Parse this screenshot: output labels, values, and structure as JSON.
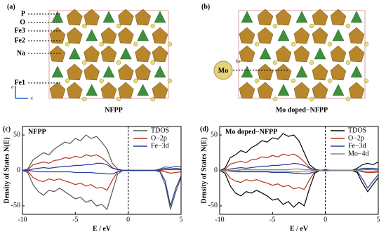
{
  "panels": [
    {
      "label": "(a)",
      "caption": "NFPP",
      "atoms": [
        "P",
        "O",
        "Fe3",
        "Fe2",
        "Na",
        "Fe1"
      ],
      "axes": [
        "a",
        "c"
      ]
    },
    {
      "label": "(b)",
      "caption": "Mo doped−NFPP",
      "dopant": "Mo",
      "charge": "6+"
    }
  ],
  "chart_data": [
    {
      "type": "line",
      "panel": "(c)",
      "title": "NFPP",
      "xlabel": "E / eV",
      "ylabel": "Density of States N(E)",
      "x": [
        -10,
        -9.5,
        -9,
        -8.5,
        -8,
        -7.5,
        -7,
        -6.5,
        -6,
        -5.5,
        -5,
        -4.5,
        -4,
        -3.5,
        -3,
        -2.5,
        -2,
        -1.5,
        -1,
        -0.5,
        0,
        0.5,
        1,
        1.5,
        2,
        2.5,
        3,
        3.5,
        4,
        4.5,
        5
      ],
      "xlim": [
        -10,
        5
      ],
      "xticks": [
        -10,
        -5,
        0,
        5
      ],
      "ylim": [
        -62,
        62
      ],
      "yticks": [
        -50,
        0,
        50
      ],
      "fermi_level": 0,
      "series": [
        {
          "name": "TDOS",
          "color": "#555555",
          "values": [
            0,
            2,
            15,
            20,
            25,
            22,
            30,
            35,
            40,
            38,
            45,
            42,
            50,
            45,
            48,
            40,
            30,
            10,
            2,
            0,
            0,
            0,
            0,
            0,
            0,
            0,
            2,
            5,
            4,
            6,
            5
          ],
          "values_down": [
            0,
            -3,
            -20,
            -30,
            -35,
            -28,
            -30,
            -25,
            -30,
            -35,
            -40,
            -38,
            -45,
            -42,
            -50,
            -48,
            -55,
            -30,
            -5,
            0,
            0,
            0,
            0,
            0,
            0,
            0,
            -2,
            -20,
            -55,
            -30,
            -10
          ]
        },
        {
          "name": "O−2p",
          "color": "#b5361b",
          "values": [
            0,
            1,
            8,
            10,
            12,
            10,
            14,
            15,
            18,
            17,
            20,
            18,
            22,
            20,
            22,
            18,
            12,
            4,
            1,
            0,
            0,
            0,
            0,
            0,
            0,
            0,
            0,
            1,
            1,
            1,
            1
          ],
          "values_down": [
            0,
            -1,
            -10,
            -14,
            -16,
            -12,
            -14,
            -12,
            -15,
            -17,
            -20,
            -18,
            -22,
            -20,
            -25,
            -24,
            -28,
            -14,
            -2,
            0,
            0,
            0,
            0,
            0,
            0,
            0,
            0,
            -2,
            -4,
            -3,
            -2
          ]
        },
        {
          "name": "Fe−3d",
          "color": "#2a3f9a",
          "values": [
            0,
            0,
            2,
            3,
            4,
            3,
            4,
            5,
            6,
            6,
            7,
            7,
            8,
            8,
            10,
            10,
            8,
            3,
            1,
            0,
            0,
            0,
            0,
            0,
            0,
            0,
            1,
            3,
            2,
            3,
            2
          ],
          "values_down": [
            0,
            0,
            -1,
            -2,
            -2,
            -2,
            -2,
            -2,
            -2,
            -2,
            -3,
            -3,
            -3,
            -3,
            -4,
            -4,
            -5,
            -5,
            -2,
            0,
            0,
            0,
            0,
            0,
            0,
            0,
            -1,
            -15,
            -50,
            -25,
            -8
          ]
        }
      ]
    },
    {
      "type": "line",
      "panel": "(d)",
      "title": "Mo doped−NFPP",
      "xlabel": "E / eV",
      "ylabel": "Density of States N(E)",
      "x": [
        -10,
        -9.5,
        -9,
        -8.5,
        -8,
        -7.5,
        -7,
        -6.5,
        -6,
        -5.5,
        -5,
        -4.5,
        -4,
        -3.5,
        -3,
        -2.5,
        -2,
        -1.5,
        -1,
        -0.5,
        0,
        0.5,
        1,
        1.5,
        2,
        2.5,
        3,
        3.5,
        4,
        4.5,
        5
      ],
      "xlim": [
        -10,
        5
      ],
      "xticks": [
        -10,
        -5,
        0,
        5
      ],
      "ylim": [
        -62,
        62
      ],
      "yticks": [
        -50,
        0,
        50
      ],
      "fermi_level": 0,
      "series": [
        {
          "name": "TDOS",
          "color": "#000000",
          "values": [
            0,
            3,
            18,
            22,
            28,
            25,
            32,
            36,
            42,
            40,
            46,
            44,
            52,
            48,
            50,
            42,
            25,
            8,
            2,
            0,
            1,
            0,
            0,
            0,
            0,
            0,
            3,
            8,
            10,
            8,
            12
          ],
          "values_down": [
            0,
            -4,
            -22,
            -32,
            -36,
            -30,
            -32,
            -28,
            -32,
            -36,
            -42,
            -40,
            -48,
            -44,
            -52,
            -45,
            -50,
            -25,
            -4,
            0,
            -1,
            0,
            0,
            0,
            0,
            0,
            -3,
            -18,
            -30,
            -20,
            -10
          ]
        },
        {
          "name": "O−2p",
          "color": "#b5361b",
          "values": [
            0,
            1,
            9,
            11,
            13,
            11,
            15,
            16,
            19,
            18,
            21,
            19,
            23,
            21,
            23,
            19,
            12,
            4,
            1,
            0,
            0,
            0,
            0,
            0,
            0,
            0,
            0,
            1,
            1,
            1,
            1
          ],
          "values_down": [
            0,
            -1,
            -11,
            -15,
            -17,
            -13,
            -15,
            -13,
            -16,
            -18,
            -21,
            -19,
            -23,
            -21,
            -26,
            -24,
            -27,
            -13,
            -2,
            0,
            0,
            0,
            0,
            0,
            0,
            0,
            0,
            -2,
            -3,
            -3,
            -2
          ]
        },
        {
          "name": "Fe−3d",
          "color": "#2a3f9a",
          "values": [
            0,
            0,
            2,
            3,
            4,
            3,
            4,
            5,
            6,
            6,
            7,
            7,
            8,
            8,
            10,
            9,
            7,
            3,
            1,
            0,
            0,
            0,
            0,
            0,
            0,
            0,
            1,
            3,
            3,
            3,
            2
          ],
          "values_down": [
            0,
            0,
            -1,
            -2,
            -2,
            -2,
            -2,
            -2,
            -2,
            -2,
            -3,
            -3,
            -3,
            -3,
            -4,
            -4,
            -5,
            -4,
            -2,
            0,
            0,
            0,
            0,
            0,
            0,
            0,
            -1,
            -12,
            -25,
            -15,
            -6
          ]
        },
        {
          "name": "Mo−4d",
          "color": "#888888",
          "values": [
            0,
            0,
            0,
            0,
            1,
            1,
            1,
            1,
            1,
            1,
            1,
            1,
            1,
            1,
            2,
            2,
            1,
            1,
            0,
            0,
            2,
            0,
            0,
            0,
            0,
            0,
            0,
            1,
            2,
            1,
            1
          ],
          "values_down": [
            0,
            0,
            0,
            0,
            -1,
            -1,
            -1,
            -1,
            -1,
            -1,
            -1,
            -1,
            -1,
            -1,
            -2,
            -2,
            -1,
            -1,
            0,
            0,
            -1,
            0,
            0,
            0,
            0,
            0,
            0,
            -1,
            -2,
            -1,
            -1
          ]
        }
      ]
    }
  ]
}
